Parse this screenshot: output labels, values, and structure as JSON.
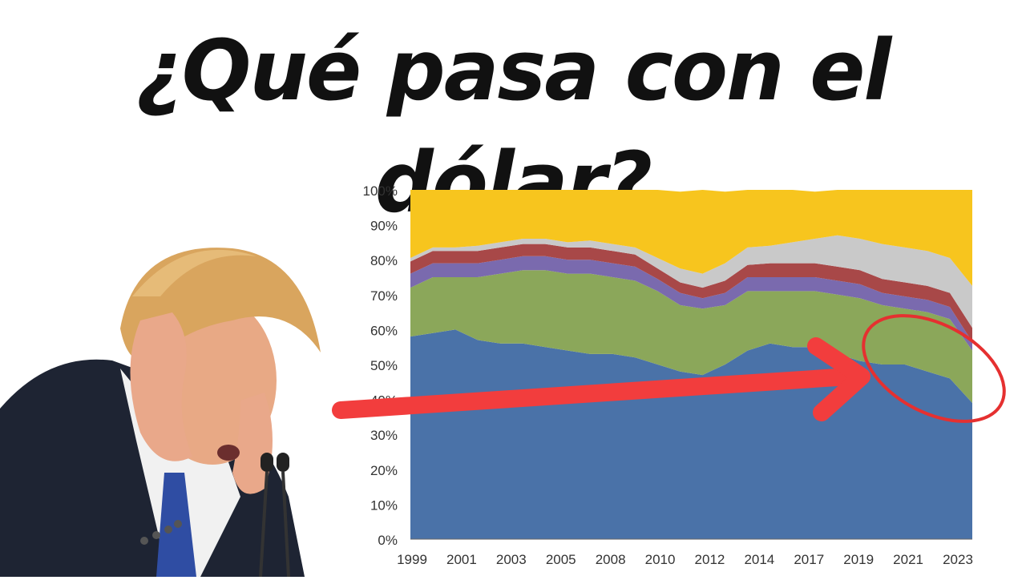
{
  "headline": "¿Qué pasa con el dólar?",
  "colors": {
    "usd": "#4A72A8",
    "eur": "#8BA75A",
    "purple": "#7A6AAE",
    "red": "#A84848",
    "gray": "#C9C9C9",
    "other": "#F7C51E",
    "arrow": "#F23D3D"
  },
  "chart_data": {
    "type": "area",
    "stacked": true,
    "x": [
      1999,
      2000,
      2001,
      2002,
      2003,
      2004,
      2005,
      2006,
      2007,
      2008,
      2009,
      2010,
      2011,
      2012,
      2013,
      2014,
      2015,
      2016,
      2017,
      2018,
      2019,
      2020,
      2021,
      2022,
      2023,
      2024
    ],
    "x_tick_labels": [
      "1999",
      "2001",
      "2003",
      "2005",
      "2008",
      "2010",
      "2012",
      "2014",
      "2017",
      "2019",
      "2021",
      "2023"
    ],
    "y_tick_labels": [
      "0%",
      "10%",
      "20%",
      "30%",
      "40%",
      "50%",
      "60%",
      "70%",
      "80%",
      "90%",
      "100%"
    ],
    "ylim": [
      0,
      100
    ],
    "series": [
      {
        "color_key": "usd",
        "values": [
          58,
          59,
          60,
          57,
          56,
          56,
          55,
          54,
          53,
          53,
          52,
          50,
          48,
          47,
          50,
          54,
          56,
          55,
          55,
          53,
          51,
          50,
          50,
          48,
          46,
          39
        ]
      },
      {
        "color_key": "eur",
        "values": [
          14,
          16,
          15,
          18,
          20,
          21,
          22,
          22,
          23,
          22,
          22,
          21,
          19,
          19,
          17,
          17,
          15,
          16,
          16,
          17,
          18,
          17,
          16,
          17,
          17,
          15
        ]
      },
      {
        "color_key": "purple",
        "values": [
          4,
          4,
          4,
          4,
          4,
          4,
          4,
          4,
          4,
          4,
          4,
          3.5,
          3.5,
          3,
          3.5,
          4,
          4,
          4,
          4,
          4,
          4,
          3.5,
          3.5,
          3.5,
          3.5,
          2.5
        ]
      },
      {
        "color_key": "red",
        "values": [
          3.5,
          3.5,
          3.5,
          3.5,
          3.5,
          3.5,
          3.5,
          3.5,
          3.5,
          3.5,
          3.5,
          3,
          3,
          3,
          3.5,
          3.5,
          4,
          4,
          4,
          4,
          4,
          4,
          4,
          4,
          4,
          4
        ]
      },
      {
        "color_key": "gray",
        "values": [
          1,
          1,
          1,
          1.5,
          1.5,
          1.5,
          1.5,
          1.5,
          2,
          2,
          2,
          3,
          4,
          4,
          5,
          5,
          5,
          6,
          7,
          9,
          9,
          10,
          10,
          10,
          10,
          12
        ]
      },
      {
        "color_key": "other",
        "values": [
          19.5,
          16.5,
          16.5,
          16,
          15,
          14,
          14,
          15,
          14.5,
          15.5,
          16.5,
          19.5,
          22,
          24,
          20.5,
          16.5,
          16,
          15,
          13.5,
          13,
          14,
          15.5,
          16.5,
          17.5,
          19.5,
          27.5
        ]
      }
    ]
  }
}
